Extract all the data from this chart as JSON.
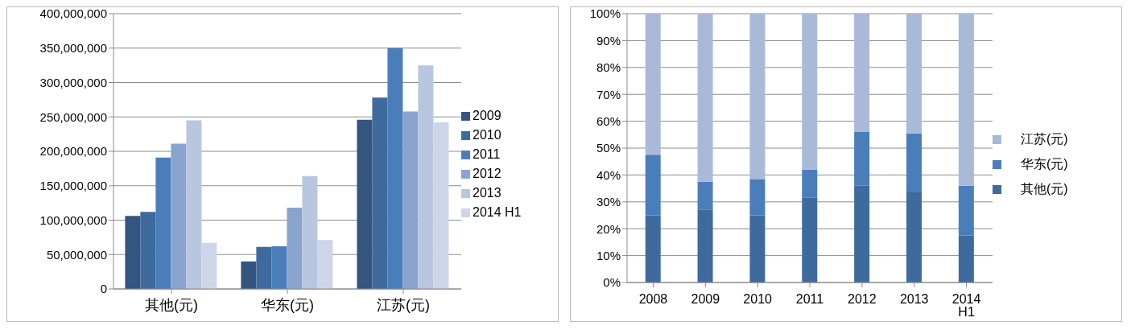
{
  "chart_data": [
    {
      "type": "bar",
      "categories": [
        "其他(元)",
        "华东(元)",
        "江苏(元)"
      ],
      "series": [
        {
          "name": "2009",
          "color": "#34557f",
          "values": [
            106000000,
            40000000,
            246000000
          ]
        },
        {
          "name": "2010",
          "color": "#3f6a9e",
          "values": [
            112000000,
            61000000,
            278000000
          ]
        },
        {
          "name": "2011",
          "color": "#4a7ebb",
          "values": [
            191000000,
            62000000,
            350000000
          ]
        },
        {
          "name": "2012",
          "color": "#8aa5cd",
          "values": [
            211000000,
            118000000,
            258000000
          ]
        },
        {
          "name": "2013",
          "color": "#b9c6e0",
          "values": [
            245000000,
            164000000,
            325000000
          ]
        },
        {
          "name": "2014 H1",
          "color": "#cdd6e8",
          "values": [
            67000000,
            71000000,
            242000000
          ]
        }
      ],
      "ylim": [
        0,
        400000000
      ],
      "yticks": [
        0,
        {
          "value": 50000000,
          "label": "50,000,000"
        },
        {
          "value": 100000000,
          "label": "100,000,000"
        },
        {
          "value": 150000000,
          "label": "150,000,000"
        },
        {
          "value": 200000000,
          "label": "200,000,000"
        },
        {
          "value": 250000000,
          "label": "250,000,000"
        },
        {
          "value": 300000000,
          "label": "300,000,000"
        },
        {
          "value": 350000000,
          "label": "350,000,000"
        },
        {
          "value": 400000000,
          "label": "400,000,000"
        }
      ],
      "grid": "y",
      "legend": "right"
    },
    {
      "type": "bar",
      "stacked": true,
      "categories": [
        "2008",
        "2009",
        "2010",
        "2011",
        "2012",
        "2013",
        "2014 H1"
      ],
      "series": [
        {
          "name": "其他(元)",
          "color": "#3f6a9e",
          "values": [
            25,
            27,
            25,
            31.5,
            36,
            33.5,
            17.5
          ]
        },
        {
          "name": "华东(元)",
          "color": "#4a7ebb",
          "values": [
            22.5,
            10.5,
            13.5,
            10.5,
            20,
            22,
            18.5
          ]
        },
        {
          "name": "江苏(元)",
          "color": "#a9b9d8",
          "values": [
            52.5,
            62.5,
            61.5,
            58,
            44,
            44.5,
            64
          ]
        }
      ],
      "ylim": [
        0,
        100
      ],
      "yticks": [
        {
          "value": 0,
          "label": "0%"
        },
        {
          "value": 10,
          "label": "10%"
        },
        {
          "value": 20,
          "label": "20%"
        },
        {
          "value": 30,
          "label": "30%"
        },
        {
          "value": 40,
          "label": "40%"
        },
        {
          "value": 50,
          "label": "50%"
        },
        {
          "value": 60,
          "label": "60%"
        },
        {
          "value": 70,
          "label": "70%"
        },
        {
          "value": 80,
          "label": "80%"
        },
        {
          "value": 90,
          "label": "90%"
        },
        {
          "value": 100,
          "label": "100%"
        }
      ],
      "grid": "y",
      "legend": "right"
    }
  ]
}
